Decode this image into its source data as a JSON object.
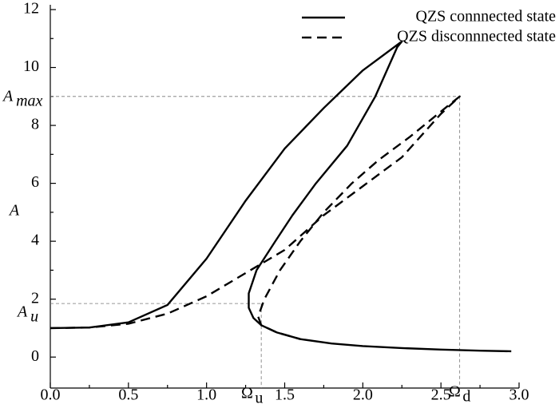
{
  "chart_data": {
    "type": "line",
    "y_label": "A",
    "xlim": [
      0,
      3.0
    ],
    "ylim": [
      -1.07,
      12
    ],
    "xticks": [
      {
        "value": 0,
        "label": "0.0"
      },
      {
        "value": 0.5,
        "label": "0.5"
      },
      {
        "value": 1,
        "label": "1.0"
      },
      {
        "value": 1.5,
        "label": "1.5"
      },
      {
        "value": 2,
        "label": "2.0"
      },
      {
        "value": 2.5,
        "label": "2.5"
      },
      {
        "value": 3,
        "label": "3.0"
      }
    ],
    "yticks": [
      0,
      2,
      4,
      6,
      8,
      10,
      12
    ],
    "legend": "top-right",
    "series": [
      {
        "name": "QZS connnected state",
        "color": "#000000",
        "dash": "solid",
        "x": [
          0,
          0.25,
          0.5,
          0.75,
          1.0,
          1.25,
          1.5,
          1.75,
          2.0,
          2.25,
          2.22,
          2.08,
          1.9,
          1.7,
          1.55,
          1.44,
          1.32,
          1.27,
          1.27,
          1.3,
          1.35,
          1.45,
          1.6,
          1.8,
          2.0,
          2.25,
          2.5,
          2.75,
          2.95
        ],
        "values": [
          1.0,
          1.02,
          1.2,
          1.8,
          3.4,
          5.4,
          7.2,
          8.6,
          9.9,
          10.9,
          10.7,
          9.0,
          7.3,
          6.0,
          4.9,
          4.0,
          3.0,
          2.2,
          1.7,
          1.35,
          1.1,
          0.85,
          0.62,
          0.47,
          0.38,
          0.31,
          0.26,
          0.22,
          0.2
        ]
      },
      {
        "name": "QZS disconnnected state",
        "color": "#000000",
        "dash": "dashed",
        "x": [
          0,
          0.25,
          0.5,
          0.75,
          1.0,
          1.25,
          1.5,
          1.75,
          2.0,
          2.25,
          2.5,
          2.62,
          2.55,
          2.3,
          2.1,
          1.93,
          1.75,
          1.6,
          1.47,
          1.37,
          1.33,
          1.35,
          1.45,
          1.6
        ],
        "values": [
          1.0,
          1.02,
          1.15,
          1.5,
          2.1,
          2.9,
          3.7,
          4.9,
          5.9,
          6.9,
          8.4,
          9.0,
          8.7,
          7.6,
          6.8,
          6.0,
          5.0,
          4.0,
          3.0,
          2.0,
          1.4,
          1.1,
          0.85,
          0.62
        ]
      }
    ],
    "annotations": [
      {
        "text": "A",
        "sub": "max",
        "x": 2.62,
        "y": 9.0
      },
      {
        "text": "A",
        "sub": "u",
        "x": 1.35,
        "y": 1.85
      },
      {
        "text": "Ω",
        "sub": "u",
        "x": 1.35,
        "y": 1.85
      },
      {
        "text": "Ω",
        "sub": "d",
        "x": 2.62,
        "y": 9.0
      }
    ]
  }
}
